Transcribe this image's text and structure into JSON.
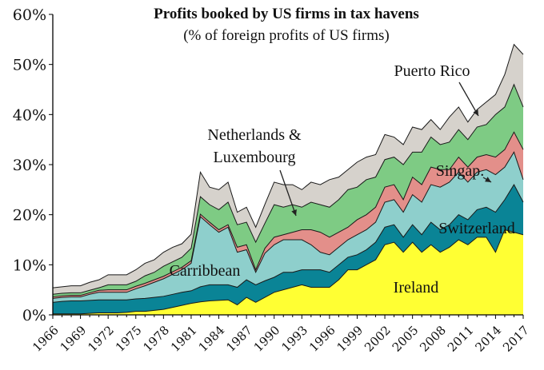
{
  "chart_data": {
    "type": "area",
    "stacked": true,
    "title": "Profits booked by US firms in tax havens",
    "subtitle": "(% of foreign profits of US firms)",
    "ylim": [
      0,
      60
    ],
    "y_ticks": [
      "0%",
      "10%",
      "20%",
      "30%",
      "40%",
      "50%",
      "60%"
    ],
    "x_ticks": [
      "1966",
      "1969",
      "1972",
      "1975",
      "1978",
      "1981",
      "1984",
      "1987",
      "1990",
      "1993",
      "1996",
      "1999",
      "2002",
      "2005",
      "2008",
      "2011",
      "2014",
      "2017"
    ],
    "grid": false,
    "legend": "none",
    "x": [
      1966,
      1967,
      1968,
      1969,
      1970,
      1971,
      1972,
      1973,
      1974,
      1975,
      1976,
      1977,
      1978,
      1979,
      1980,
      1981,
      1982,
      1983,
      1984,
      1985,
      1986,
      1987,
      1988,
      1989,
      1990,
      1991,
      1992,
      1993,
      1994,
      1995,
      1996,
      1997,
      1998,
      1999,
      2000,
      2001,
      2002,
      2003,
      2004,
      2005,
      2006,
      2007,
      2008,
      2009,
      2010,
      2011,
      2012,
      2013,
      2014,
      2015,
      2016,
      2017
    ],
    "series": [
      {
        "name": "Ireland",
        "color": "#ffff33",
        "values": [
          0.2,
          0.2,
          0.2,
          0.2,
          0.3,
          0.4,
          0.4,
          0.4,
          0.5,
          0.7,
          0.7,
          0.9,
          1.1,
          1.5,
          1.9,
          2.3,
          2.6,
          2.8,
          2.9,
          3.0,
          2.0,
          3.5,
          2.5,
          3.5,
          4.5,
          5.0,
          5.5,
          6.0,
          5.5,
          5.5,
          5.5,
          7.0,
          9.0,
          9.0,
          10.0,
          11.0,
          14.0,
          14.5,
          12.5,
          14.5,
          12.5,
          14.0,
          12.5,
          13.5,
          15.0,
          14.0,
          15.5,
          15.5,
          12.5,
          17.0,
          16.5,
          16.0
        ]
      },
      {
        "name": "Switzerland",
        "color": "#0a8496",
        "values": [
          2.3,
          2.5,
          2.6,
          2.6,
          2.6,
          2.6,
          2.6,
          2.6,
          2.5,
          2.5,
          2.6,
          2.6,
          2.6,
          2.6,
          2.6,
          2.5,
          3.0,
          3.2,
          3.1,
          3.0,
          3.5,
          3.5,
          3.5,
          3.3,
          3.0,
          3.5,
          3.0,
          3.0,
          3.5,
          3.5,
          3.0,
          3.0,
          2.5,
          3.0,
          3.0,
          3.5,
          3.5,
          3.5,
          3.0,
          3.5,
          3.5,
          4.5,
          4.5,
          4.5,
          5.0,
          5.0,
          5.5,
          6.0,
          8.0,
          6.0,
          9.5,
          6.5
        ]
      },
      {
        "name": "Carribbean",
        "color": "#8ecfcc",
        "values": [
          0.8,
          0.8,
          0.8,
          0.8,
          1.2,
          1.5,
          1.5,
          1.5,
          1.5,
          2.0,
          2.5,
          3.0,
          3.5,
          4.0,
          4.5,
          5.5,
          14.0,
          12.0,
          10.5,
          11.5,
          7.0,
          6.0,
          2.5,
          5.5,
          6.5,
          6.5,
          6.5,
          6.0,
          5.0,
          3.5,
          3.5,
          3.5,
          3.5,
          4.0,
          4.0,
          4.0,
          5.0,
          5.0,
          5.0,
          6.0,
          6.5,
          7.5,
          8.5,
          8.5,
          8.5,
          7.5,
          7.5,
          7.5,
          7.5,
          6.5,
          6.5,
          4.5
        ]
      },
      {
        "name": "Singap.",
        "color": "#e38f8a",
        "values": [
          0.3,
          0.3,
          0.3,
          0.3,
          0.3,
          0.4,
          0.5,
          0.5,
          0.5,
          0.5,
          0.5,
          0.5,
          0.5,
          0.5,
          0.5,
          0.5,
          0.5,
          0.5,
          0.5,
          0.5,
          1.0,
          1.0,
          0.5,
          1.0,
          1.5,
          1.0,
          1.5,
          2.0,
          3.0,
          4.0,
          3.5,
          3.0,
          2.5,
          3.0,
          3.0,
          3.0,
          3.0,
          3.0,
          2.5,
          3.5,
          3.5,
          3.5,
          3.5,
          2.5,
          3.0,
          3.0,
          3.0,
          3.0,
          3.5,
          3.5,
          4.0,
          6.0
        ]
      },
      {
        "name": "Netherlands & Luxembourg",
        "color": "#7ecb84",
        "values": [
          0.5,
          0.5,
          0.5,
          0.5,
          0.5,
          0.5,
          1.0,
          1.0,
          1.0,
          1.0,
          1.5,
          1.5,
          2.0,
          2.0,
          2.0,
          2.5,
          3.5,
          3.5,
          4.0,
          4.5,
          4.5,
          4.5,
          5.5,
          5.0,
          6.5,
          5.5,
          5.5,
          4.5,
          5.5,
          5.5,
          6.0,
          6.5,
          7.5,
          6.5,
          7.0,
          6.0,
          5.5,
          5.5,
          7.0,
          5.0,
          6.5,
          6.0,
          5.0,
          5.5,
          5.5,
          5.5,
          6.0,
          6.0,
          8.5,
          8.5,
          9.5,
          8.5
        ]
      },
      {
        "name": "Puerto Rico",
        "color": "#d6d2cc",
        "values": [
          1.3,
          1.3,
          1.4,
          1.4,
          1.6,
          1.6,
          2.0,
          2.0,
          2.0,
          2.3,
          2.5,
          2.5,
          2.8,
          2.9,
          2.7,
          2.8,
          4.9,
          3.5,
          4.0,
          4.0,
          2.5,
          3.0,
          3.0,
          3.8,
          4.5,
          4.5,
          4.0,
          3.5,
          4.0,
          4.0,
          5.5,
          4.5,
          4.0,
          5.0,
          4.5,
          4.5,
          5.0,
          4.0,
          4.0,
          5.0,
          4.5,
          3.5,
          3.0,
          5.0,
          4.5,
          3.5,
          3.5,
          4.5,
          4.0,
          6.5,
          8.0,
          10.5
        ]
      }
    ],
    "annotations": [
      {
        "text": "Ireland",
        "series": "Ireland"
      },
      {
        "text": "Switzerland",
        "series": "Switzerland"
      },
      {
        "text": "Carribbean",
        "series": "Carribbean"
      },
      {
        "text": "Singap.",
        "series": "Singap."
      },
      {
        "text": "Netherlands &",
        "series": "Netherlands & Luxembourg"
      },
      {
        "text": "Luxembourg",
        "series": "Netherlands & Luxembourg"
      },
      {
        "text": "Puerto Rico",
        "series": "Puerto Rico"
      }
    ]
  }
}
